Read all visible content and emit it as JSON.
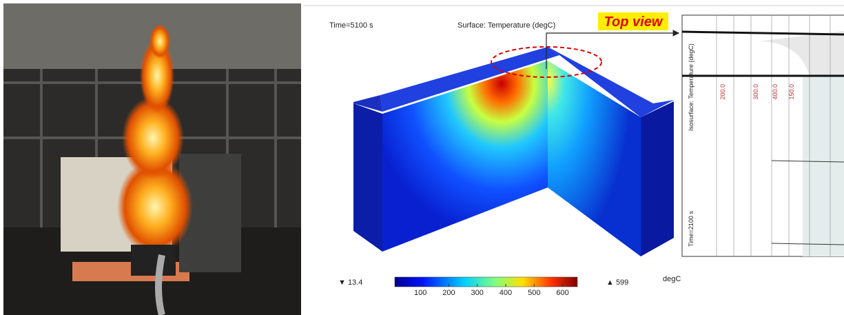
{
  "simulation": {
    "time": "Time=5100 s",
    "title": "Surface: Temperature (degC)",
    "min_label": "▼ 13.4",
    "max_label": "▲ 599",
    "unit": "degC",
    "colorbar": {
      "lim": [
        10,
        652
      ],
      "ticks": [
        100,
        200,
        300,
        400,
        500,
        600
      ]
    }
  },
  "annotation": "Top view",
  "inset": {
    "legend": "Isosurface: Temperature (degC)",
    "time": "Time=2100 s",
    "contour_labels": [
      "200.0",
      "300.0",
      "400.0",
      "150.0"
    ]
  }
}
